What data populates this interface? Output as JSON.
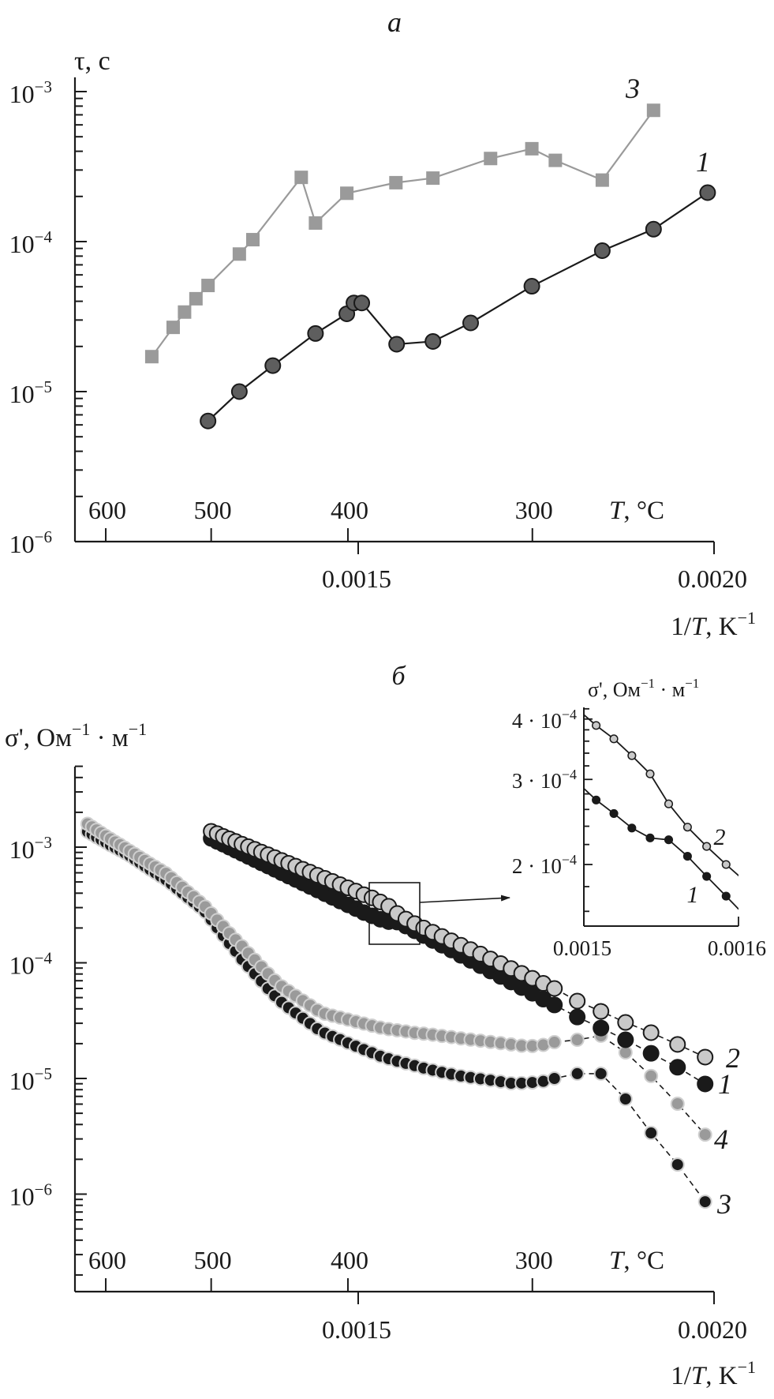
{
  "figure": {
    "panel_a_label": "a",
    "panel_b_label": "б"
  },
  "chart_data": [
    {
      "panel": "a",
      "type": "line",
      "xscale": "linear",
      "xlim": [
        0.001102,
        0.002
      ],
      "yscale": "log",
      "ylim": [
        1e-06,
        0.001245
      ],
      "grid": false,
      "ylabel": [
        {
          "t": "τ, с"
        }
      ],
      "xlabel": [
        {
          "t": "1/"
        },
        {
          "t": "T",
          "i": true
        },
        {
          "t": ", K"
        },
        {
          "t": "−1",
          "sup": true
        }
      ],
      "xticks": [
        0.0015,
        0.002
      ],
      "xtick_labels": [
        "0.0015",
        "0.0020"
      ],
      "secondary_x": {
        "label": [
          {
            "t": "T",
            "i": true
          },
          {
            "t": ", °C"
          }
        ],
        "ticks_C": [
          600,
          500,
          400,
          300
        ],
        "tick_labels": [
          "600",
          "500",
          "400",
          "300"
        ]
      },
      "yticks": [
        0.001,
        0.0001,
        1e-05,
        1e-06
      ],
      "ytick_labels": [
        [
          {
            "t": "10"
          },
          {
            "t": "−3",
            "sup": true
          }
        ],
        [
          {
            "t": "10"
          },
          {
            "t": "−4",
            "sup": true
          }
        ],
        [
          {
            "t": "10"
          },
          {
            "t": "−5",
            "sup": true
          }
        ],
        [
          {
            "t": "10"
          },
          {
            "t": "−6",
            "sup": true
          }
        ]
      ],
      "series": [
        {
          "name": "3",
          "marker": "square",
          "color": "#9a9a9a",
          "line_color": "#9a9a9a",
          "x": [
            0.00121,
            0.00124,
            0.001256,
            0.001272,
            0.001289,
            0.001333,
            0.001352,
            0.00142,
            0.00144,
            0.001484,
            0.001553,
            0.001605,
            0.001686,
            0.001744,
            0.001777,
            0.001843,
            0.001915
          ],
          "y": [
            1.71e-05,
            2.68e-05,
            3.39e-05,
            4.16e-05,
            5.1e-05,
            8.26e-05,
            0.000103,
            0.000268,
            0.000133,
            0.00021,
            0.000247,
            0.000265,
            0.000358,
            0.000416,
            0.000348,
            0.000257,
            0.00075
          ]
        },
        {
          "name": "1",
          "marker": "circle",
          "color": "#5e5e5e",
          "line_color": "#1a1a1a",
          "x": [
            0.001289,
            0.001333,
            0.00138,
            0.00144,
            0.001484,
            0.001494,
            0.001505,
            0.001554,
            0.001605,
            0.001658,
            0.001744,
            0.001843,
            0.001915,
            0.001991
          ],
          "y": [
            6.37e-06,
            1e-05,
            1.49e-05,
            2.44e-05,
            3.3e-05,
            3.9e-05,
            3.9e-05,
            2.07e-05,
            2.16e-05,
            2.87e-05,
            5.04e-05,
            8.7e-05,
            0.000121,
            0.000212
          ]
        }
      ]
    },
    {
      "panel": "б",
      "type": "scatter",
      "xscale": "linear",
      "xlim": [
        0.001102,
        0.002
      ],
      "yscale": "log",
      "ylim": [
        1.4e-07,
        0.005
      ],
      "grid": false,
      "x_values_unit": "T, °C",
      "ylabel": [
        {
          "t": "σ', Ом"
        },
        {
          "t": "−1",
          "sup": true
        },
        {
          "t": " · м"
        },
        {
          "t": "−1",
          "sup": true
        }
      ],
      "xlabel": [
        {
          "t": "1/"
        },
        {
          "t": "T",
          "i": true
        },
        {
          "t": ", K"
        },
        {
          "t": "−1",
          "sup": true
        }
      ],
      "xticks": [
        0.0015,
        0.002
      ],
      "xtick_labels": [
        "0.0015",
        "0.0020"
      ],
      "secondary_x": {
        "label": [
          {
            "t": "T",
            "i": true
          },
          {
            "t": ", °C"
          }
        ],
        "ticks_C": [
          600,
          500,
          400,
          300
        ],
        "tick_labels": [
          "600",
          "500",
          "400",
          "300"
        ]
      },
      "yticks": [
        0.001,
        0.0001,
        1e-05,
        1e-06
      ],
      "ytick_labels": [
        [
          {
            "t": "10"
          },
          {
            "t": "−3",
            "sup": true
          }
        ],
        [
          {
            "t": "10"
          },
          {
            "t": "−4",
            "sup": true
          }
        ],
        [
          {
            "t": "10"
          },
          {
            "t": "−5",
            "sup": true
          }
        ],
        [
          {
            "t": "10"
          },
          {
            "t": "−6",
            "sup": true
          }
        ]
      ],
      "series": [
        {
          "name": "3",
          "fill": "#1a1a1a",
          "stroke": "#cfcfcf",
          "T_C": [
            620,
            615,
            610,
            605,
            600,
            595,
            590,
            585,
            580,
            575,
            570,
            565,
            560,
            555,
            550,
            545,
            540,
            535,
            530,
            525,
            520,
            515,
            510,
            505,
            500,
            495,
            490,
            485,
            480,
            475,
            470,
            465,
            460,
            455,
            450,
            445,
            440,
            435,
            430,
            425,
            420,
            415,
            410,
            405,
            400,
            395,
            390,
            385,
            380,
            375,
            370,
            365,
            360,
            355,
            350,
            345,
            340,
            335,
            330,
            325,
            320,
            315,
            310,
            305,
            300,
            295,
            290,
            280,
            270,
            260,
            250,
            240,
            230
          ],
          "y": [
            0.00136,
            0.00129,
            0.00122,
            0.00116,
            0.0011,
            0.00104,
            0.000991,
            0.00094,
            0.000891,
            0.000843,
            0.000787,
            0.000736,
            0.000687,
            0.000641,
            0.0006,
            0.00056,
            0.000524,
            0.000481,
            0.000439,
            0.000401,
            0.000366,
            0.000335,
            0.000305,
            0.000275,
            0.000236,
            0.000201,
            0.000172,
            0.000147,
            0.000126,
            0.000107,
            9.29e-05,
            8.02e-05,
            6.93e-05,
            5.98e-05,
            5.18e-05,
            4.55e-05,
            4.09e-05,
            3.68e-05,
            3.32e-05,
            2.99e-05,
            2.69e-05,
            2.47e-05,
            2.31e-05,
            2.17e-05,
            2.03e-05,
            1.9e-05,
            1.78e-05,
            1.67e-05,
            1.56e-05,
            1.48e-05,
            1.41e-05,
            1.35e-05,
            1.29e-05,
            1.23e-05,
            1.18e-05,
            1.13e-05,
            1.09e-05,
            1.05e-05,
            1.02e-05,
            9.93e-06,
            9.66e-06,
            9.38e-06,
            9.1e-06,
            9.12e-06,
            9.23e-06,
            9.44e-06,
            1e-05,
            1.1e-05,
            1.1e-05,
            6.65e-06,
            3.38e-06,
            1.8e-06,
            8.6e-07
          ]
        },
        {
          "name": "4",
          "fill": "#9a9a9a",
          "stroke": "#cfcfcf",
          "T_C": [
            620,
            615,
            610,
            605,
            600,
            595,
            590,
            585,
            580,
            575,
            570,
            565,
            560,
            555,
            550,
            545,
            540,
            535,
            530,
            525,
            520,
            515,
            510,
            505,
            500,
            495,
            490,
            485,
            480,
            475,
            470,
            465,
            460,
            455,
            450,
            445,
            440,
            435,
            430,
            425,
            420,
            415,
            410,
            405,
            400,
            395,
            390,
            385,
            380,
            375,
            370,
            365,
            360,
            355,
            350,
            345,
            340,
            335,
            330,
            325,
            320,
            315,
            310,
            305,
            300,
            295,
            290,
            280,
            270,
            260,
            250,
            240,
            230
          ],
          "y": [
            0.00159,
            0.0015,
            0.00141,
            0.00133,
            0.00125,
            0.00118,
            0.00111,
            0.00105,
            0.000986,
            0.000927,
            0.000871,
            0.000817,
            0.000767,
            0.000719,
            0.000675,
            0.000634,
            0.000594,
            0.000543,
            0.000494,
            0.00045,
            0.000408,
            0.000372,
            0.000337,
            0.000305,
            0.000267,
            0.000234,
            0.000206,
            0.00018,
            0.000158,
            0.000139,
            0.000121,
            0.000106,
            9.23e-05,
            8.05e-05,
            7.03e-05,
            6.25e-05,
            5.69e-05,
            5.18e-05,
            4.71e-05,
            4.29e-05,
            3.9e-05,
            3.63e-05,
            3.49e-05,
            3.36e-05,
            3.23e-05,
            3.1e-05,
            2.98e-05,
            2.86e-05,
            2.75e-05,
            2.67e-05,
            2.61e-05,
            2.55e-05,
            2.48e-05,
            2.44e-05,
            2.39e-05,
            2.33e-05,
            2.28e-05,
            2.22e-05,
            2.17e-05,
            2.12e-05,
            2.07e-05,
            2.02e-05,
            1.97e-05,
            1.92e-05,
            1.91e-05,
            1.95e-05,
            2.06e-05,
            2.16e-05,
            2.34e-05,
            1.68e-05,
            1.05e-05,
            6.05e-06,
            3.27e-06
          ]
        },
        {
          "name": "1",
          "fill": "#1a1a1a",
          "stroke": "#1a1a1a",
          "T_C": [
            500,
            495,
            490,
            485,
            480,
            475,
            470,
            465,
            460,
            455,
            450,
            445,
            440,
            435,
            430,
            425,
            420,
            415,
            410,
            405,
            400,
            395,
            390,
            385,
            380,
            375,
            370,
            365,
            360,
            355,
            350,
            345,
            340,
            335,
            330,
            325,
            320,
            315,
            310,
            305,
            300,
            295,
            290,
            280,
            270,
            260,
            250,
            240,
            230
          ],
          "y": [
            0.00119,
            0.00112,
            0.00106,
            0.000998,
            0.00094,
            0.000884,
            0.00083,
            0.00078,
            0.000731,
            0.000686,
            0.000643,
            0.000601,
            0.000562,
            0.000525,
            0.00049,
            0.000457,
            0.000426,
            0.000396,
            0.000368,
            0.000342,
            0.000317,
            0.000294,
            0.000272,
            0.000255,
            0.000238,
            0.000227,
            0.000225,
            0.000208,
            0.000189,
            0.000172,
            0.000156,
            0.000142,
            0.000129,
            0.000116,
            0.000105,
            9.44e-05,
            8.49e-05,
            7.62e-05,
            6.82e-05,
            6.11e-05,
            5.45e-05,
            4.85e-05,
            4.32e-05,
            3.4e-05,
            2.73e-05,
            2.16e-05,
            1.65e-05,
            1.25e-05,
            8.96e-06
          ]
        },
        {
          "name": "2",
          "fill": "#c9c9c9",
          "stroke": "#1a1a1a",
          "T_C": [
            500,
            495,
            490,
            485,
            480,
            475,
            470,
            465,
            460,
            455,
            450,
            445,
            440,
            435,
            430,
            425,
            420,
            415,
            410,
            405,
            400,
            395,
            390,
            385,
            380,
            375,
            370,
            365,
            360,
            355,
            350,
            345,
            340,
            335,
            330,
            325,
            320,
            315,
            310,
            305,
            300,
            295,
            290,
            280,
            270,
            260,
            250,
            240,
            230
          ],
          "y": [
            0.00137,
            0.00131,
            0.00124,
            0.00118,
            0.00112,
            0.00106,
            0.00101,
            0.000957,
            0.000906,
            0.000859,
            0.000812,
            0.000767,
            0.000725,
            0.000684,
            0.000644,
            0.000608,
            0.000571,
            0.000538,
            0.000506,
            0.000474,
            0.000445,
            0.000417,
            0.000388,
            0.000364,
            0.000336,
            0.000308,
            0.000267,
            0.000239,
            0.000218,
            0.0002,
            0.000184,
            0.000169,
            0.000155,
            0.000142,
            0.00013,
            0.000119,
            0.000108,
            9.84e-05,
            8.93e-05,
            8.11e-05,
            7.35e-05,
            6.64e-05,
            6e-05,
            4.67e-05,
            3.8e-05,
            3.05e-05,
            2.49e-05,
            1.97e-05,
            1.53e-05
          ]
        }
      ],
      "inset": {
        "xlim": [
          0.0015,
          0.0016
        ],
        "ylim": [
          0.000149,
          0.000424
        ],
        "yscale": "log",
        "series_shown": [
          "2",
          "1"
        ],
        "ylabel": [
          {
            "t": "σ', Ом"
          },
          {
            "t": "−1",
            "sup": true
          },
          {
            "t": " · м"
          },
          {
            "t": "−1",
            "sup": true
          }
        ],
        "xticks": [
          0.0015,
          0.0016
        ],
        "xtick_labels": [
          "0.0015",
          "0.0016"
        ],
        "yticks": [
          0.0004,
          0.0003,
          0.0002
        ],
        "ytick_labels": [
          [
            {
              "t": "4 · 10"
            },
            {
              "t": "−4",
              "sup": true
            }
          ],
          [
            {
              "t": "3 · 10"
            },
            {
              "t": "−4",
              "sup": true
            }
          ],
          [
            {
              "t": "2 · 10"
            },
            {
              "t": "−4",
              "sup": true
            }
          ]
        ]
      }
    }
  ]
}
